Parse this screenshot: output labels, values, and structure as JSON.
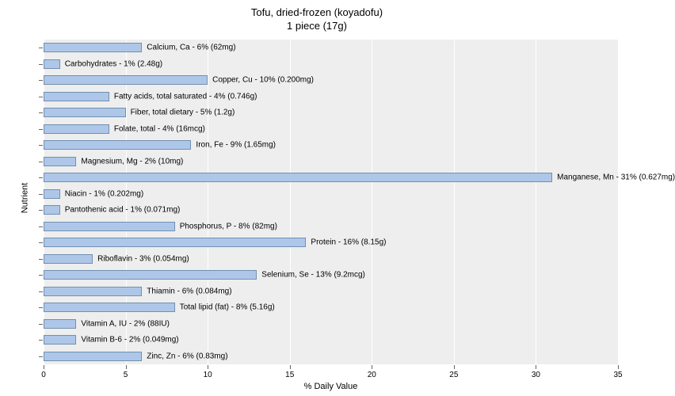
{
  "chart": {
    "type": "bar",
    "title_line1": "Tofu, dried-frozen (koyadofu)",
    "title_line2": "1 piece (17g)",
    "title_fontsize": 13,
    "xlabel": "% Daily Value",
    "ylabel": "Nutrient",
    "label_fontsize": 11,
    "xlim": [
      0,
      35
    ],
    "xtick_step": 5,
    "xticks": [
      0,
      5,
      10,
      15,
      20,
      25,
      30,
      35
    ],
    "plot_background_color": "#eeeeee",
    "grid_color": "#ffffff",
    "bar_color": "#aec7e8",
    "bar_border_color": "#7090b0",
    "text_color": "#000000",
    "tick_fontsize": 10,
    "bar_label_fontsize": 10,
    "nutrients": [
      {
        "label": "Calcium, Ca - 6% (62mg)",
        "value": 6
      },
      {
        "label": "Carbohydrates - 1% (2.48g)",
        "value": 1
      },
      {
        "label": "Copper, Cu - 10% (0.200mg)",
        "value": 10
      },
      {
        "label": "Fatty acids, total saturated - 4% (0.746g)",
        "value": 4
      },
      {
        "label": "Fiber, total dietary - 5% (1.2g)",
        "value": 5
      },
      {
        "label": "Folate, total - 4% (16mcg)",
        "value": 4
      },
      {
        "label": "Iron, Fe - 9% (1.65mg)",
        "value": 9
      },
      {
        "label": "Magnesium, Mg - 2% (10mg)",
        "value": 2
      },
      {
        "label": "Manganese, Mn - 31% (0.627mg)",
        "value": 31
      },
      {
        "label": "Niacin - 1% (0.202mg)",
        "value": 1
      },
      {
        "label": "Pantothenic acid - 1% (0.071mg)",
        "value": 1
      },
      {
        "label": "Phosphorus, P - 8% (82mg)",
        "value": 8
      },
      {
        "label": "Protein - 16% (8.15g)",
        "value": 16
      },
      {
        "label": "Riboflavin - 3% (0.054mg)",
        "value": 3
      },
      {
        "label": "Selenium, Se - 13% (9.2mcg)",
        "value": 13
      },
      {
        "label": "Thiamin - 6% (0.084mg)",
        "value": 6
      },
      {
        "label": "Total lipid (fat) - 8% (5.16g)",
        "value": 8
      },
      {
        "label": "Vitamin A, IU - 2% (88IU)",
        "value": 2
      },
      {
        "label": "Vitamin B-6 - 2% (0.049mg)",
        "value": 2
      },
      {
        "label": "Zinc, Zn - 6% (0.83mg)",
        "value": 6
      }
    ]
  }
}
